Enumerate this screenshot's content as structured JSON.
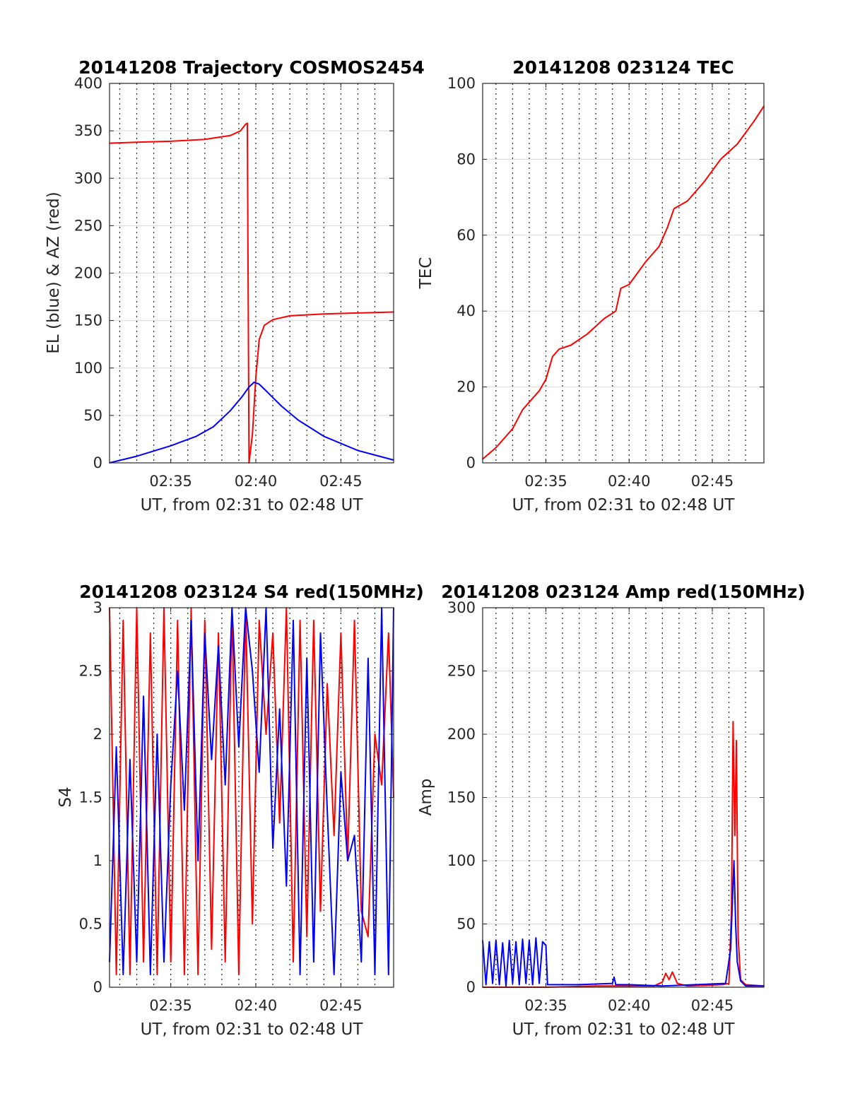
{
  "figure": {
    "background": "#ffffff"
  },
  "charts": [
    {
      "title": "20141208 Trajectory COSMOS2454",
      "xlabel": "UT, from 02:31 to 02:48 UT",
      "ylabel": "EL (blue) & AZ (red)",
      "xticklabels": [
        "02:35",
        "02:40",
        "02:45"
      ],
      "yticklabels": [
        "0",
        "50",
        "100",
        "150",
        "200",
        "250",
        "300",
        "350",
        "400"
      ]
    },
    {
      "title": "20141208 023124 TEC",
      "xlabel": "UT, from 02:31 to 02:48 UT",
      "ylabel": "TEC",
      "xticklabels": [
        "02:35",
        "02:40",
        "02:45"
      ],
      "yticklabels": [
        "0",
        "20",
        "40",
        "60",
        "80",
        "100"
      ]
    },
    {
      "title": "20141208 023124 S4 red(150MHz)",
      "xlabel": "UT, from 02:31 to 02:48 UT",
      "ylabel": "S4",
      "xticklabels": [
        "02:35",
        "02:40",
        "02:45"
      ],
      "yticklabels": [
        "0",
        "0.5",
        "1",
        "1.5",
        "2",
        "2.5",
        "3"
      ]
    },
    {
      "title": "20141208 023124 Amp red(150MHz)",
      "xlabel": "UT, from 02:31 to 02:48 UT",
      "ylabel": "Amp",
      "xticklabels": [
        "02:35",
        "02:40",
        "02:45"
      ],
      "yticklabels": [
        "0",
        "50",
        "100",
        "150",
        "200",
        "250",
        "300"
      ]
    }
  ],
  "chart_data": [
    {
      "type": "line",
      "title": "20141208 Trajectory COSMOS2454",
      "xlabel": "UT, from 02:31 to 02:48 UT",
      "ylabel": "EL (blue) & AZ (red)",
      "x_unit": "minutes after 02:00 UT",
      "xlim": [
        31.4,
        48.1
      ],
      "ylim": [
        0,
        400
      ],
      "yticks": [
        0,
        50,
        100,
        150,
        200,
        250,
        300,
        350,
        400
      ],
      "grid": true,
      "series": [
        {
          "color": "#ff0000",
          "x": [
            31.4,
            33.0,
            35.0,
            37.0,
            38.5,
            39.1,
            39.4,
            39.5,
            39.6,
            39.8,
            40.0,
            40.2,
            40.5,
            41.0,
            42.0,
            44.0,
            46.0,
            48.1
          ],
          "values": [
            337,
            338,
            339,
            341,
            345,
            350,
            357,
            358,
            0,
            30,
            90,
            130,
            145,
            151,
            155,
            157,
            158,
            159
          ]
        },
        {
          "color": "#0000ff",
          "x": [
            31.4,
            33.0,
            35.0,
            36.5,
            37.5,
            38.5,
            39.2,
            39.6,
            39.9,
            40.2,
            40.6,
            41.5,
            42.5,
            44.0,
            46.0,
            48.1
          ],
          "values": [
            0,
            7,
            18,
            28,
            38,
            55,
            70,
            80,
            85,
            83,
            76,
            60,
            45,
            28,
            13,
            3
          ]
        }
      ]
    },
    {
      "type": "line",
      "title": "20141208 023124 TEC",
      "xlabel": "UT, from 02:31 to 02:48 UT",
      "ylabel": "TEC",
      "x_unit": "minutes after 02:00 UT",
      "xlim": [
        31.2,
        48.1
      ],
      "ylim": [
        0,
        100
      ],
      "yticks": [
        0,
        20,
        40,
        60,
        80,
        100
      ],
      "grid": true,
      "series": [
        {
          "color": "#ff0000",
          "x": [
            31.2,
            32.0,
            33.0,
            33.6,
            34.2,
            34.6,
            35.0,
            35.4,
            35.8,
            36.5,
            37.5,
            38.5,
            39.2,
            39.5,
            40.0,
            41.0,
            41.8,
            42.3,
            42.7,
            43.5,
            44.5,
            45.5,
            46.5,
            47.5,
            48.1
          ],
          "values": [
            1,
            4,
            9,
            14,
            17,
            19,
            22,
            28,
            30,
            31,
            34,
            38,
            40,
            46,
            47,
            53,
            57,
            62,
            67,
            69,
            74,
            80,
            84,
            90,
            94
          ]
        }
      ]
    },
    {
      "type": "line",
      "title": "20141208 023124 S4 red(150MHz)",
      "xlabel": "UT, from 02:31 to 02:48 UT",
      "ylabel": "S4",
      "x_unit": "minutes after 02:00 UT",
      "xlim": [
        31.4,
        48.1
      ],
      "ylim": [
        0,
        3
      ],
      "yticks": [
        0,
        0.5,
        1,
        1.5,
        2,
        2.5,
        3
      ],
      "grid": true,
      "series": [
        {
          "color": "#ff0000",
          "x": [
            31.4,
            31.8,
            32.2,
            32.6,
            33.0,
            33.4,
            33.8,
            34.2,
            34.6,
            35.0,
            35.4,
            35.8,
            36.2,
            36.6,
            37.0,
            37.4,
            37.8,
            38.2,
            38.6,
            39.0,
            39.4,
            39.8,
            40.2,
            40.6,
            41.0,
            41.4,
            41.8,
            42.2,
            42.6,
            43.0,
            43.4,
            43.8,
            44.2,
            44.6,
            45.0,
            45.4,
            45.8,
            46.2,
            46.6,
            47.0,
            47.4,
            47.8,
            48.1
          ],
          "values": [
            3,
            0.1,
            2.9,
            0.1,
            3,
            0.2,
            2.8,
            0.1,
            3,
            0.2,
            2.9,
            0.1,
            3,
            0.1,
            2.9,
            0.3,
            2.8,
            0.2,
            3,
            0.1,
            3,
            0.5,
            2.9,
            2.0,
            2.8,
            1.3,
            3,
            0.2,
            2.9,
            0.4,
            2.9,
            0.6,
            2.4,
            1.2,
            2.8,
            1.0,
            2.9,
            0.6,
            0.4,
            2.0,
            1.6,
            2.8,
            1.5
          ]
        },
        {
          "color": "#0000ff",
          "x": [
            31.4,
            31.8,
            32.2,
            32.6,
            33.0,
            33.4,
            33.8,
            34.2,
            34.6,
            35.0,
            35.4,
            35.8,
            36.2,
            36.6,
            37.0,
            37.4,
            37.8,
            38.2,
            38.6,
            39.0,
            39.4,
            39.8,
            40.2,
            40.6,
            41.0,
            41.4,
            41.8,
            42.2,
            42.6,
            43.0,
            43.4,
            43.8,
            44.2,
            44.6,
            45.0,
            45.4,
            45.8,
            46.2,
            46.6,
            47.0,
            47.4,
            47.8,
            48.1
          ],
          "values": [
            0.2,
            1.9,
            0.1,
            1.8,
            0.2,
            2.3,
            0.1,
            2.0,
            0.2,
            1.6,
            2.5,
            1.4,
            2.9,
            1.0,
            2.8,
            1.8,
            2.7,
            1.6,
            3,
            1.9,
            3,
            2.5,
            1.7,
            3,
            1.1,
            2.2,
            0.8,
            2.9,
            0.1,
            2.6,
            0.2,
            2.8,
            1.4,
            0.1,
            1.7,
            1.0,
            1.2,
            0.2,
            2.6,
            0.1,
            3,
            0.1,
            3
          ]
        }
      ]
    },
    {
      "type": "line",
      "title": "20141208 023124 Amp red(150MHz)",
      "xlabel": "UT, from 02:31 to 02:48 UT",
      "ylabel": "Amp",
      "x_unit": "minutes after 02:00 UT",
      "xlim": [
        31.2,
        48.1
      ],
      "ylim": [
        0,
        300
      ],
      "yticks": [
        0,
        50,
        100,
        150,
        200,
        250,
        300
      ],
      "grid": true,
      "series": [
        {
          "color": "#ff0000",
          "x": [
            31.2,
            35.0,
            38.0,
            41.5,
            42.0,
            42.2,
            42.4,
            42.6,
            42.9,
            43.5,
            45.6,
            46.0,
            46.15,
            46.25,
            46.35,
            46.45,
            46.55,
            46.7,
            47.0,
            48.1
          ],
          "values": [
            0,
            0,
            1,
            1,
            4,
            11,
            6,
            12,
            3,
            1,
            2,
            3,
            60,
            210,
            120,
            195,
            40,
            6,
            2,
            1
          ]
        },
        {
          "color": "#0000ff",
          "x": [
            31.2,
            31.4,
            31.6,
            31.8,
            32.0,
            32.2,
            32.4,
            32.6,
            32.8,
            33.0,
            33.2,
            33.4,
            33.6,
            33.8,
            34.0,
            34.2,
            34.4,
            34.6,
            34.8,
            35.0,
            35.1,
            37.0,
            39.0,
            39.1,
            39.2,
            40.0,
            42.0,
            44.0,
            45.8,
            46.1,
            46.3,
            46.4,
            46.5,
            46.7,
            47.0,
            48.1
          ],
          "values": [
            37,
            2,
            36,
            3,
            37,
            2,
            35,
            1,
            37,
            3,
            36,
            2,
            38,
            3,
            37,
            2,
            39,
            3,
            36,
            33,
            2,
            2,
            3,
            8,
            2,
            2,
            1,
            2,
            3,
            30,
            100,
            50,
            20,
            5,
            1,
            1
          ]
        }
      ]
    }
  ]
}
